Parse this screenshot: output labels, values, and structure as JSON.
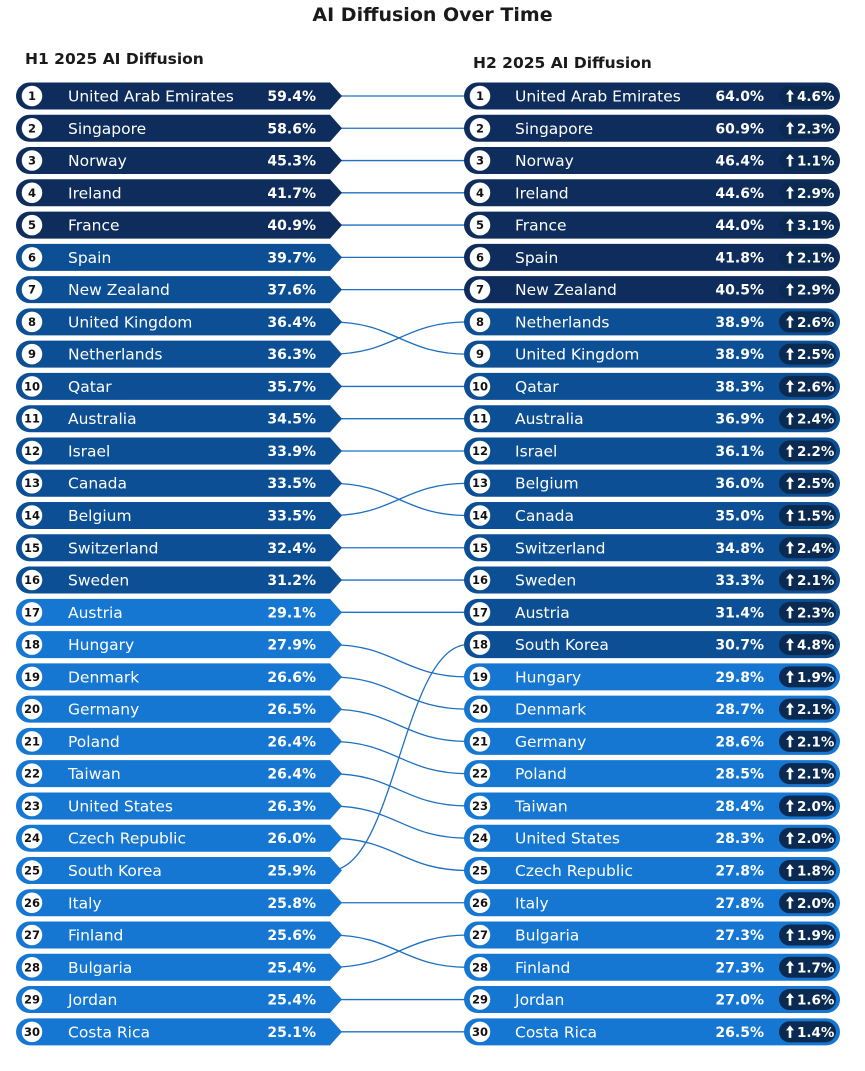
{
  "chart_data": {
    "type": "table",
    "title": "AI Diffusion Over Time",
    "left_title": "H1 2025 AI Diffusion",
    "right_title": "H2 2025 AI Diffusion",
    "h1": [
      {
        "rank": 1,
        "country": "United Arab Emirates",
        "value": "59.4%"
      },
      {
        "rank": 2,
        "country": "Singapore",
        "value": "58.6%"
      },
      {
        "rank": 3,
        "country": "Norway",
        "value": "45.3%"
      },
      {
        "rank": 4,
        "country": "Ireland",
        "value": "41.7%"
      },
      {
        "rank": 5,
        "country": "France",
        "value": "40.9%"
      },
      {
        "rank": 6,
        "country": "Spain",
        "value": "39.7%"
      },
      {
        "rank": 7,
        "country": "New Zealand",
        "value": "37.6%"
      },
      {
        "rank": 8,
        "country": "United Kingdom",
        "value": "36.4%"
      },
      {
        "rank": 9,
        "country": "Netherlands",
        "value": "36.3%"
      },
      {
        "rank": 10,
        "country": "Qatar",
        "value": "35.7%"
      },
      {
        "rank": 11,
        "country": "Australia",
        "value": "34.5%"
      },
      {
        "rank": 12,
        "country": "Israel",
        "value": "33.9%"
      },
      {
        "rank": 13,
        "country": "Canada",
        "value": "33.5%"
      },
      {
        "rank": 14,
        "country": "Belgium",
        "value": "33.5%"
      },
      {
        "rank": 15,
        "country": "Switzerland",
        "value": "32.4%"
      },
      {
        "rank": 16,
        "country": "Sweden",
        "value": "31.2%"
      },
      {
        "rank": 17,
        "country": "Austria",
        "value": "29.1%"
      },
      {
        "rank": 18,
        "country": "Hungary",
        "value": "27.9%"
      },
      {
        "rank": 19,
        "country": "Denmark",
        "value": "26.6%"
      },
      {
        "rank": 20,
        "country": "Germany",
        "value": "26.5%"
      },
      {
        "rank": 21,
        "country": "Poland",
        "value": "26.4%"
      },
      {
        "rank": 22,
        "country": "Taiwan",
        "value": "26.4%"
      },
      {
        "rank": 23,
        "country": "United States",
        "value": "26.3%"
      },
      {
        "rank": 24,
        "country": "Czech Republic",
        "value": "26.0%"
      },
      {
        "rank": 25,
        "country": "South Korea",
        "value": "25.9%"
      },
      {
        "rank": 26,
        "country": "Italy",
        "value": "25.8%"
      },
      {
        "rank": 27,
        "country": "Finland",
        "value": "25.6%"
      },
      {
        "rank": 28,
        "country": "Bulgaria",
        "value": "25.4%"
      },
      {
        "rank": 29,
        "country": "Jordan",
        "value": "25.4%"
      },
      {
        "rank": 30,
        "country": "Costa Rica",
        "value": "25.1%"
      }
    ],
    "h2": [
      {
        "rank": 1,
        "country": "United Arab Emirates",
        "value": "64.0%",
        "delta": "4.6%"
      },
      {
        "rank": 2,
        "country": "Singapore",
        "value": "60.9%",
        "delta": "2.3%"
      },
      {
        "rank": 3,
        "country": "Norway",
        "value": "46.4%",
        "delta": "1.1%"
      },
      {
        "rank": 4,
        "country": "Ireland",
        "value": "44.6%",
        "delta": "2.9%"
      },
      {
        "rank": 5,
        "country": "France",
        "value": "44.0%",
        "delta": "3.1%"
      },
      {
        "rank": 6,
        "country": "Spain",
        "value": "41.8%",
        "delta": "2.1%"
      },
      {
        "rank": 7,
        "country": "New Zealand",
        "value": "40.5%",
        "delta": "2.9%"
      },
      {
        "rank": 8,
        "country": "Netherlands",
        "value": "38.9%",
        "delta": "2.6%"
      },
      {
        "rank": 9,
        "country": "United Kingdom",
        "value": "38.9%",
        "delta": "2.5%"
      },
      {
        "rank": 10,
        "country": "Qatar",
        "value": "38.3%",
        "delta": "2.6%"
      },
      {
        "rank": 11,
        "country": "Australia",
        "value": "36.9%",
        "delta": "2.4%"
      },
      {
        "rank": 12,
        "country": "Israel",
        "value": "36.1%",
        "delta": "2.2%"
      },
      {
        "rank": 13,
        "country": "Belgium",
        "value": "36.0%",
        "delta": "2.5%"
      },
      {
        "rank": 14,
        "country": "Canada",
        "value": "35.0%",
        "delta": "1.5%"
      },
      {
        "rank": 15,
        "country": "Switzerland",
        "value": "34.8%",
        "delta": "2.4%"
      },
      {
        "rank": 16,
        "country": "Sweden",
        "value": "33.3%",
        "delta": "2.1%"
      },
      {
        "rank": 17,
        "country": "Austria",
        "value": "31.4%",
        "delta": "2.3%"
      },
      {
        "rank": 18,
        "country": "South Korea",
        "value": "30.7%",
        "delta": "4.8%"
      },
      {
        "rank": 19,
        "country": "Hungary",
        "value": "29.8%",
        "delta": "1.9%"
      },
      {
        "rank": 20,
        "country": "Denmark",
        "value": "28.7%",
        "delta": "2.1%"
      },
      {
        "rank": 21,
        "country": "Germany",
        "value": "28.6%",
        "delta": "2.1%"
      },
      {
        "rank": 22,
        "country": "Poland",
        "value": "28.5%",
        "delta": "2.1%"
      },
      {
        "rank": 23,
        "country": "Taiwan",
        "value": "28.4%",
        "delta": "2.0%"
      },
      {
        "rank": 24,
        "country": "United States",
        "value": "28.3%",
        "delta": "2.0%"
      },
      {
        "rank": 25,
        "country": "Czech Republic",
        "value": "27.8%",
        "delta": "1.8%"
      },
      {
        "rank": 26,
        "country": "Italy",
        "value": "27.8%",
        "delta": "2.0%"
      },
      {
        "rank": 27,
        "country": "Bulgaria",
        "value": "27.3%",
        "delta": "1.9%"
      },
      {
        "rank": 28,
        "country": "Finland",
        "value": "27.3%",
        "delta": "1.7%"
      },
      {
        "rank": 29,
        "country": "Jordan",
        "value": "27.0%",
        "delta": "1.6%"
      },
      {
        "rank": 30,
        "country": "Costa Rica",
        "value": "26.5%",
        "delta": "1.4%"
      }
    ],
    "colors": {
      "dark": "#0f2d5c",
      "medium": "#0d4f94",
      "light": "#1677d2",
      "connector": "#1e6fc0",
      "badge": "#0b2a52"
    }
  }
}
